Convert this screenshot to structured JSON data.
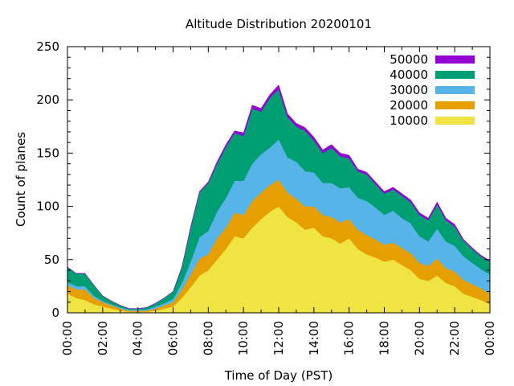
{
  "chart_data": {
    "type": "area",
    "stacked": true,
    "title": "Altitude Distribution 20200101",
    "xlabel": "Time of Day (PST)",
    "ylabel": "Count of planes",
    "xlim": [
      0,
      24
    ],
    "ylim": [
      0,
      250
    ],
    "x_ticks": [
      "00:00",
      "02:00",
      "04:00",
      "06:00",
      "08:00",
      "10:00",
      "12:00",
      "14:00",
      "16:00",
      "18:00",
      "20:00",
      "22:00",
      "00:00"
    ],
    "y_ticks": [
      0,
      50,
      100,
      150,
      200,
      250
    ],
    "legend_position": "top-right",
    "grid": false,
    "x_hours": [
      0,
      0.5,
      1,
      1.5,
      2,
      2.5,
      3,
      3.5,
      4,
      4.5,
      5,
      5.5,
      6,
      6.5,
      7,
      7.5,
      8,
      8.5,
      9,
      9.5,
      10,
      10.5,
      11,
      11.5,
      12,
      12.5,
      13,
      13.5,
      14,
      14.5,
      15,
      15.5,
      16,
      16.5,
      17,
      17.5,
      18,
      18.5,
      19,
      19.5,
      20,
      20.5,
      21,
      21.5,
      22,
      22.5,
      23,
      23.5,
      24
    ],
    "series": [
      {
        "name": "10000",
        "color": "#f0e442",
        "values": [
          18,
          14,
          12,
          8,
          6,
          4,
          2,
          1,
          1,
          1,
          2,
          4,
          6,
          14,
          24,
          35,
          40,
          50,
          60,
          72,
          70,
          80,
          88,
          95,
          100,
          90,
          85,
          78,
          80,
          72,
          70,
          65,
          70,
          60,
          55,
          52,
          48,
          50,
          45,
          40,
          32,
          30,
          35,
          28,
          25,
          18,
          15,
          12,
          8
        ]
      },
      {
        "name": "20000",
        "color": "#e69f00",
        "values": [
          8,
          8,
          10,
          6,
          4,
          3,
          2,
          1,
          1,
          1,
          2,
          3,
          4,
          8,
          12,
          16,
          15,
          20,
          20,
          22,
          22,
          25,
          25,
          25,
          25,
          23,
          22,
          22,
          20,
          20,
          20,
          20,
          18,
          18,
          18,
          17,
          16,
          16,
          16,
          16,
          15,
          14,
          16,
          14,
          14,
          13,
          12,
          11,
          10
        ]
      },
      {
        "name": "30000",
        "color": "#56b4e9",
        "values": [
          3,
          3,
          3,
          2,
          1,
          1,
          1,
          1,
          1,
          1,
          2,
          2,
          3,
          6,
          12,
          20,
          22,
          25,
          28,
          30,
          32,
          35,
          36,
          35,
          38,
          33,
          35,
          33,
          32,
          30,
          32,
          32,
          30,
          30,
          32,
          30,
          28,
          30,
          28,
          28,
          25,
          23,
          28,
          25,
          24,
          22,
          20,
          18,
          18
        ]
      },
      {
        "name": "40000",
        "color": "#009e73",
        "values": [
          14,
          12,
          12,
          10,
          5,
          3,
          2,
          1,
          1,
          2,
          3,
          5,
          7,
          15,
          32,
          42,
          45,
          45,
          48,
          45,
          42,
          52,
          40,
          47,
          47,
          38,
          33,
          38,
          30,
          28,
          33,
          30,
          27,
          25,
          25,
          22,
          20,
          20,
          21,
          20,
          20,
          20,
          23,
          20,
          18,
          15,
          13,
          12,
          12
        ]
      },
      {
        "name": "50000",
        "color": "#9400d3",
        "values": [
          0,
          0,
          0,
          0,
          0,
          0,
          0,
          0,
          0,
          0,
          0,
          0,
          0,
          0,
          1,
          1,
          1,
          2,
          2,
          2,
          3,
          3,
          3,
          3,
          4,
          3,
          3,
          3,
          3,
          3,
          3,
          3,
          3,
          2,
          2,
          2,
          2,
          2,
          2,
          2,
          2,
          2,
          2,
          2,
          2,
          1,
          1,
          1,
          1
        ]
      }
    ]
  }
}
